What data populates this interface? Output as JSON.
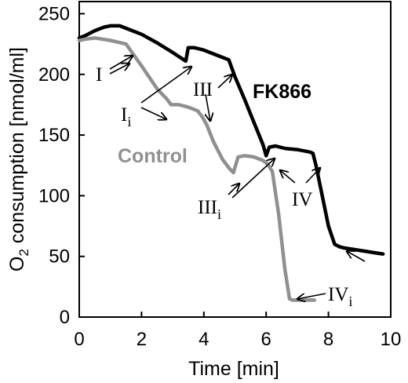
{
  "chart_data": {
    "type": "line",
    "xlabel": "Time [min]",
    "ylabel_main": "O",
    "ylabel_sub": "2",
    "ylabel_rest": " consumption [nmol/ml]",
    "xlim": [
      0,
      10
    ],
    "ylim": [
      0,
      260
    ],
    "xticks": [
      0,
      2,
      4,
      6,
      8,
      10
    ],
    "yticks": [
      0,
      50,
      100,
      150,
      200,
      250
    ],
    "grid": false,
    "series": [
      {
        "name": "FK866",
        "color": "#000000",
        "x": [
          0,
          0.2,
          0.5,
          0.8,
          1.0,
          1.3,
          1.5,
          2.0,
          2.5,
          3.0,
          3.3,
          3.42,
          3.5,
          3.7,
          4.0,
          4.3,
          4.6,
          4.8,
          5.0,
          5.3,
          5.6,
          5.9,
          6.0,
          6.1,
          6.3,
          6.6,
          7.0,
          7.4,
          7.5,
          7.6,
          7.8,
          8.0,
          8.2,
          8.35,
          8.5,
          9.0,
          9.5,
          9.75
        ],
        "y": [
          230,
          232,
          236,
          239,
          240,
          240,
          238,
          233,
          226,
          218,
          213,
          211,
          222,
          222,
          220,
          217,
          214,
          212,
          198,
          180,
          161,
          142,
          133,
          140,
          141,
          139,
          138,
          136,
          135,
          125,
          100,
          75,
          60,
          58,
          57,
          55,
          53,
          52
        ]
      },
      {
        "name": "Control",
        "color": "#909090",
        "x": [
          0,
          0.2,
          0.5,
          1.0,
          1.5,
          2.0,
          2.5,
          2.8,
          2.95,
          3.2,
          3.5,
          3.8,
          3.95,
          4.1,
          4.3,
          4.6,
          4.8,
          4.95,
          5.1,
          5.3,
          5.6,
          5.9,
          6.05,
          6.2,
          6.4,
          6.6,
          6.75,
          6.85,
          7.0,
          7.3,
          7.55
        ],
        "y": [
          228,
          229,
          230,
          228,
          225,
          207,
          188,
          180,
          175,
          175,
          173,
          170,
          165,
          158,
          145,
          130,
          123,
          119,
          132,
          133,
          132,
          129,
          126,
          120,
          85,
          40,
          15,
          14,
          14,
          14,
          14
        ]
      }
    ],
    "series_labels": {
      "fk866": "FK866",
      "control": "Control"
    },
    "annotations": [
      {
        "id": "I",
        "text": "I",
        "sub": ""
      },
      {
        "id": "Ii",
        "text": "I",
        "sub": "i"
      },
      {
        "id": "III",
        "text": "III",
        "sub": ""
      },
      {
        "id": "IIIi",
        "text": "III",
        "sub": "i"
      },
      {
        "id": "IV",
        "text": "IV",
        "sub": ""
      },
      {
        "id": "IVi",
        "text": "IV",
        "sub": "i"
      }
    ]
  }
}
